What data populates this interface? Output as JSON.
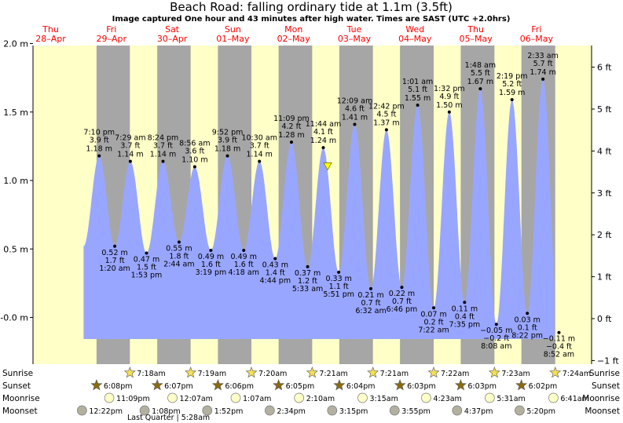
{
  "chart_data": {
    "type": "area",
    "title": "Beach Road: falling  ordinary tide at 1.1m (3.5ft)",
    "subtitle": "Image captured One hour and 43 minutes after high water. Times are SAST (UTC +2.0hrs)",
    "ylabel_left_unit": "m",
    "ylabel_right_unit": "ft",
    "ylim": [
      -0.3,
      2.0
    ],
    "left_ticks": [
      "-0.0 m",
      "0.5 m",
      "1.0 m",
      "1.5 m",
      "2.0 m"
    ],
    "left_tick_values": [
      0.0,
      0.5,
      1.0,
      1.5,
      2.0
    ],
    "right_ticks": [
      "−1 ft",
      "0 ft",
      "1 ft",
      "2 ft",
      "3 ft",
      "4 ft",
      "5 ft",
      "6 ft"
    ],
    "right_tick_values_ft": [
      -1,
      0,
      1,
      2,
      3,
      4,
      5,
      6
    ],
    "x_range_hours": [
      0,
      9
    ],
    "days": [
      {
        "name": "Thu",
        "date": "28–Apr"
      },
      {
        "name": "Fri",
        "date": "29–Apr"
      },
      {
        "name": "Sat",
        "date": "30–Apr"
      },
      {
        "name": "Sun",
        "date": "01–May"
      },
      {
        "name": "Mon",
        "date": "02–May"
      },
      {
        "name": "Tue",
        "date": "03–May"
      },
      {
        "name": "Wed",
        "date": "04–May"
      },
      {
        "name": "Thu",
        "date": "05–May"
      },
      {
        "name": "Fri",
        "date": "06–May"
      }
    ],
    "tides": [
      {
        "type": "H",
        "time": "7:10 pm",
        "ft": "3.9 ft",
        "m": "1.18 m",
        "day": 0,
        "h": 19.17,
        "v": 1.18
      },
      {
        "type": "L",
        "time": "1:20 am",
        "ft": "1.7 ft",
        "m": "0.52 m",
        "day": 1,
        "h": 1.33,
        "v": 0.52
      },
      {
        "type": "H",
        "time": "7:29 am",
        "ft": "3.7 ft",
        "m": "1.14 m",
        "day": 1,
        "h": 7.48,
        "v": 1.14
      },
      {
        "type": "L",
        "time": "1:53 pm",
        "ft": "1.5 ft",
        "m": "0.47 m",
        "day": 1,
        "h": 13.88,
        "v": 0.47
      },
      {
        "type": "H",
        "time": "8:24 pm",
        "ft": "3.7 ft",
        "m": "1.14 m",
        "day": 1,
        "h": 20.4,
        "v": 1.14
      },
      {
        "type": "L",
        "time": "2:44 am",
        "ft": "1.8 ft",
        "m": "0.55 m",
        "day": 2,
        "h": 2.73,
        "v": 0.55
      },
      {
        "type": "H",
        "time": "8:56 am",
        "ft": "3.6 ft",
        "m": "1.10 m",
        "day": 2,
        "h": 8.93,
        "v": 1.1
      },
      {
        "type": "L",
        "time": "3:19 pm",
        "ft": "1.6 ft",
        "m": "0.49 m",
        "day": 2,
        "h": 15.32,
        "v": 0.49
      },
      {
        "type": "H",
        "time": "9:52 pm",
        "ft": "3.9 ft",
        "m": "1.18 m",
        "day": 2,
        "h": 21.87,
        "v": 1.18
      },
      {
        "type": "L",
        "time": "4:18 am",
        "ft": "1.6 ft",
        "m": "0.49 m",
        "day": 3,
        "h": 4.3,
        "v": 0.49
      },
      {
        "type": "H",
        "time": "10:30 am",
        "ft": "3.7 ft",
        "m": "1.14 m",
        "day": 3,
        "h": 10.5,
        "v": 1.14
      },
      {
        "type": "L",
        "time": "4:44 pm",
        "ft": "1.4 ft",
        "m": "0.43 m",
        "day": 3,
        "h": 16.73,
        "v": 0.43
      },
      {
        "type": "H",
        "time": "11:09 pm",
        "ft": "4.2 ft",
        "m": "1.28 m",
        "day": 3,
        "h": 23.15,
        "v": 1.28
      },
      {
        "type": "L",
        "time": "5:33 am",
        "ft": "1.2 ft",
        "m": "0.37 m",
        "day": 4,
        "h": 5.55,
        "v": 0.37
      },
      {
        "type": "H",
        "time": "11:44 am",
        "ft": "4.1 ft",
        "m": "1.24 m",
        "day": 4,
        "h": 11.73,
        "v": 1.24
      },
      {
        "type": "L",
        "time": "5:51 pm",
        "ft": "1.1 ft",
        "m": "0.33 m",
        "day": 4,
        "h": 17.85,
        "v": 0.33
      },
      {
        "type": "H",
        "time": "12:09 am",
        "ft": "4.6 ft",
        "m": "1.41 m",
        "day": 5,
        "h": 0.15,
        "v": 1.41
      },
      {
        "type": "L",
        "time": "6:32 am",
        "ft": "0.7 ft",
        "m": "0.21 m",
        "day": 5,
        "h": 6.53,
        "v": 0.21
      },
      {
        "type": "H",
        "time": "12:42 pm",
        "ft": "4.5 ft",
        "m": "1.37 m",
        "day": 5,
        "h": 12.7,
        "v": 1.37
      },
      {
        "type": "L",
        "time": "6:46 pm",
        "ft": "0.7 ft",
        "m": "0.22 m",
        "day": 5,
        "h": 18.77,
        "v": 0.22
      },
      {
        "type": "H",
        "time": "1:01 am",
        "ft": "5.1 ft",
        "m": "1.55 m",
        "day": 6,
        "h": 1.02,
        "v": 1.55
      },
      {
        "type": "L",
        "time": "7:22 am",
        "ft": "0.2 ft",
        "m": "0.07 m",
        "day": 6,
        "h": 7.37,
        "v": 0.07
      },
      {
        "type": "H",
        "time": "1:32 pm",
        "ft": "4.9 ft",
        "m": "1.50 m",
        "day": 6,
        "h": 13.53,
        "v": 1.5
      },
      {
        "type": "L",
        "time": "7:35 pm",
        "ft": "0.4 ft",
        "m": "0.11 m",
        "day": 6,
        "h": 19.58,
        "v": 0.11
      },
      {
        "type": "H",
        "time": "1:48 am",
        "ft": "5.5 ft",
        "m": "1.67 m",
        "day": 7,
        "h": 1.8,
        "v": 1.67
      },
      {
        "type": "L",
        "time": "8:08 am",
        "ft": "−0.2 ft",
        "m": "−0.05 m",
        "day": 7,
        "h": 8.13,
        "v": -0.05
      },
      {
        "type": "H",
        "time": "2:19 pm",
        "ft": "5.2 ft",
        "m": "1.59 m",
        "day": 7,
        "h": 14.32,
        "v": 1.59
      },
      {
        "type": "L",
        "time": "8:22 pm",
        "ft": "0.1 ft",
        "m": "0.03 m",
        "day": 7,
        "h": 20.37,
        "v": 0.03
      },
      {
        "type": "H",
        "time": "2:33 am",
        "ft": "5.7 ft",
        "m": "1.74 m",
        "day": 8,
        "h": 2.55,
        "v": 1.74
      },
      {
        "type": "L",
        "time": "8:52 am",
        "ft": "−0.4 ft",
        "m": "−0.11 m",
        "day": 8,
        "h": 8.87,
        "v": -0.11
      }
    ],
    "current_marker": {
      "day": 4,
      "h": 13.45,
      "v": 1.1
    },
    "nights": [
      {
        "start": [
          0,
          18.13
        ],
        "end": [
          1,
          7.3
        ]
      },
      {
        "start": [
          1,
          18.12
        ],
        "end": [
          2,
          7.32
        ]
      },
      {
        "start": [
          2,
          18.1
        ],
        "end": [
          3,
          7.33
        ]
      },
      {
        "start": [
          3,
          18.08
        ],
        "end": [
          4,
          7.35
        ]
      },
      {
        "start": [
          4,
          18.07
        ],
        "end": [
          5,
          7.35
        ]
      },
      {
        "start": [
          5,
          18.05
        ],
        "end": [
          6,
          7.37
        ]
      },
      {
        "start": [
          6,
          18.05
        ],
        "end": [
          7,
          7.38
        ]
      },
      {
        "start": [
          7,
          18.03
        ],
        "end": [
          8,
          7.4
        ]
      }
    ]
  },
  "rows": {
    "labels": [
      "Sunrise",
      "Sunset",
      "Moonrise",
      "Moonset"
    ],
    "sunrise": [
      {
        "day": 1,
        "h": 7.3,
        "text": "7:18am"
      },
      {
        "day": 2,
        "h": 7.32,
        "text": "7:19am"
      },
      {
        "day": 3,
        "h": 7.33,
        "text": "7:20am"
      },
      {
        "day": 4,
        "h": 7.35,
        "text": "7:21am"
      },
      {
        "day": 5,
        "h": 7.35,
        "text": "7:21am"
      },
      {
        "day": 6,
        "h": 7.37,
        "text": "7:22am"
      },
      {
        "day": 7,
        "h": 7.38,
        "text": "7:23am"
      },
      {
        "day": 8,
        "h": 7.4,
        "text": "7:24am"
      }
    ],
    "sunset": [
      {
        "day": 0,
        "h": 18.13,
        "text": "6:08pm"
      },
      {
        "day": 1,
        "h": 18.12,
        "text": "6:07pm"
      },
      {
        "day": 2,
        "h": 18.1,
        "text": "6:06pm"
      },
      {
        "day": 3,
        "h": 18.08,
        "text": "6:05pm"
      },
      {
        "day": 4,
        "h": 18.07,
        "text": "6:04pm"
      },
      {
        "day": 5,
        "h": 18.05,
        "text": "6:03pm"
      },
      {
        "day": 6,
        "h": 18.05,
        "text": "6:03pm"
      },
      {
        "day": 7,
        "h": 18.03,
        "text": "6:02pm"
      }
    ],
    "moonrise": [
      {
        "day": 0,
        "h": 23.15,
        "text": "11:09pm"
      },
      {
        "day": 2,
        "h": 0.12,
        "text": "12:07am"
      },
      {
        "day": 3,
        "h": 1.12,
        "text": "1:07am"
      },
      {
        "day": 4,
        "h": 2.17,
        "text": "2:10am"
      },
      {
        "day": 5,
        "h": 3.25,
        "text": "3:15am"
      },
      {
        "day": 6,
        "h": 4.38,
        "text": "4:23am"
      },
      {
        "day": 7,
        "h": 5.52,
        "text": "5:31am"
      },
      {
        "day": 8,
        "h": 6.68,
        "text": "6:41am"
      }
    ],
    "moonset": [
      {
        "day": 0,
        "h": 12.37,
        "text": "12:22pm"
      },
      {
        "day": 1,
        "h": 13.13,
        "text": "1:08pm"
      },
      {
        "day": 2,
        "h": 13.87,
        "text": "1:52pm"
      },
      {
        "day": 3,
        "h": 14.57,
        "text": "2:34pm"
      },
      {
        "day": 4,
        "h": 15.25,
        "text": "3:15pm"
      },
      {
        "day": 5,
        "h": 15.92,
        "text": "3:55pm"
      },
      {
        "day": 6,
        "h": 16.62,
        "text": "4:37pm"
      },
      {
        "day": 7,
        "h": 17.33,
        "text": "5:20pm"
      }
    ],
    "moon_phase_note": "Last Quarter | 5:28am"
  },
  "colors": {
    "water": "#99a6ff",
    "night": "#a6a6a6",
    "day": "#ffffc8",
    "day_label": "#ff0000",
    "sun_icon": "#f5e050",
    "sunset_icon": "#8a6a10",
    "moonrise_icon": "#ffffc8",
    "moonset_icon": "#b3b0a0",
    "marker": "#ffff00"
  }
}
